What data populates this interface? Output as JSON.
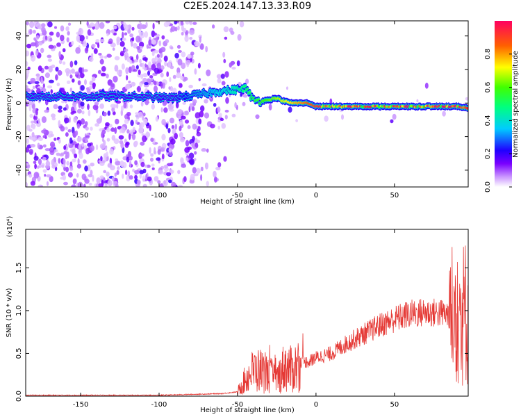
{
  "page": {
    "title": "C2E5.2024.147.13.33.R09"
  },
  "chart_data": [
    {
      "type": "heatmap",
      "xlabel": "Height of straight line (km)",
      "ylabel": "Frequency (Hz)",
      "xlim": [
        -185,
        97
      ],
      "ylim": [
        -50,
        49
      ],
      "xticks": [
        -150,
        -100,
        -50,
        0,
        50
      ],
      "yticks": [
        -40,
        -20,
        0,
        20,
        40
      ],
      "ridge": [
        {
          "x": -185,
          "f": 4
        },
        {
          "x": -120,
          "f": 4
        },
        {
          "x": -90,
          "f": 3
        },
        {
          "x": -75,
          "f": 5
        },
        {
          "x": -62,
          "f": 7
        },
        {
          "x": -50,
          "f": 8
        },
        {
          "x": -45,
          "f": 9
        },
        {
          "x": -40,
          "f": 2
        },
        {
          "x": -35,
          "f": 1
        },
        {
          "x": -30,
          "f": 2
        },
        {
          "x": -25,
          "f": 3
        },
        {
          "x": -20,
          "f": 1
        },
        {
          "x": -15,
          "f": 0
        },
        {
          "x": -5,
          "f": 0
        },
        {
          "x": 0,
          "f": -2
        },
        {
          "x": 20,
          "f": -2
        },
        {
          "x": 50,
          "f": -2
        },
        {
          "x": 90,
          "f": -2
        },
        {
          "x": 97,
          "f": -3
        }
      ],
      "colorbar": {
        "label": "Normalized spectral amplitude",
        "range": [
          0,
          1
        ],
        "ticks": [
          "0.0",
          "0.2",
          "0.4",
          "0.6",
          "0.8"
        ]
      }
    },
    {
      "type": "line",
      "xlabel": "Height of straight line (km)",
      "ylabel": "SNR (10 * v/v)",
      "ylabel_scale": "(x10⁴)",
      "color": "#e53935",
      "xlim": [
        -185,
        97
      ],
      "ylim": [
        0,
        1.95
      ],
      "xticks": [
        -150,
        -100,
        -50,
        0,
        50
      ],
      "yticks": [
        "0.0",
        "0.5",
        "1.0",
        "1.5"
      ],
      "envelope": [
        {
          "x": -185,
          "y": 0.01
        },
        {
          "x": -100,
          "y": 0.01
        },
        {
          "x": -60,
          "y": 0.03
        },
        {
          "x": -50,
          "y": 0.05
        },
        {
          "x": -45,
          "y": 0.2
        },
        {
          "x": -40,
          "y": 0.3
        },
        {
          "x": -35,
          "y": 0.3
        },
        {
          "x": -30,
          "y": 0.25
        },
        {
          "x": -25,
          "y": 0.2
        },
        {
          "x": -20,
          "y": 0.35
        },
        {
          "x": -15,
          "y": 0.3
        },
        {
          "x": -10,
          "y": 0.4
        },
        {
          "x": -5,
          "y": 0.4
        },
        {
          "x": 0,
          "y": 0.45
        },
        {
          "x": 10,
          "y": 0.5
        },
        {
          "x": 20,
          "y": 0.62
        },
        {
          "x": 30,
          "y": 0.72
        },
        {
          "x": 40,
          "y": 0.82
        },
        {
          "x": 50,
          "y": 0.9
        },
        {
          "x": 60,
          "y": 0.96
        },
        {
          "x": 70,
          "y": 0.98
        },
        {
          "x": 80,
          "y": 0.97
        },
        {
          "x": 88,
          "y": 0.95
        },
        {
          "x": 92,
          "y": 0.9
        },
        {
          "x": 95,
          "y": 1.0
        },
        {
          "x": 97,
          "y": 0.9
        }
      ]
    }
  ]
}
